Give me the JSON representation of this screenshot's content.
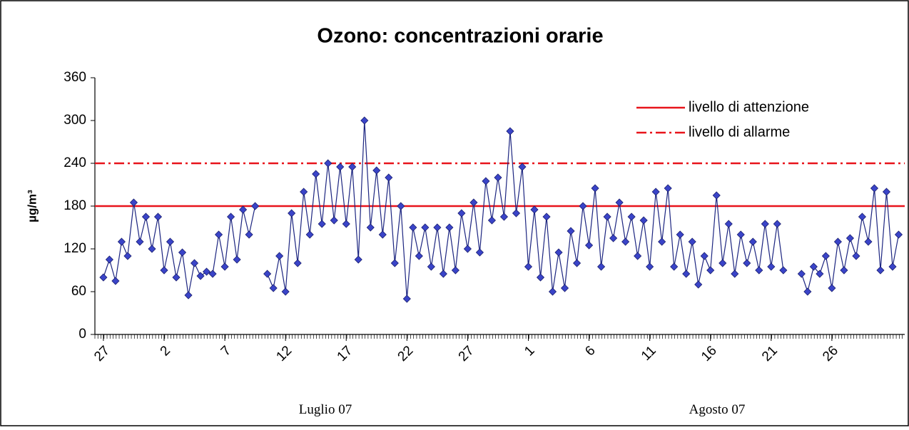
{
  "chart_data": {
    "type": "line",
    "title": "Ozono: concentrazioni orarie",
    "y_label": "µg/m³",
    "x_group_labels": [
      "Luglio 07",
      "Agosto 07"
    ],
    "xlim": [
      -0.7,
      66
    ],
    "xticks": [
      {
        "value": 0,
        "label": "27"
      },
      {
        "value": 5,
        "label": "2"
      },
      {
        "value": 10,
        "label": "7"
      },
      {
        "value": 15,
        "label": "12"
      },
      {
        "value": 20,
        "label": "17"
      },
      {
        "value": 25,
        "label": "22"
      },
      {
        "value": 30,
        "label": "27"
      },
      {
        "value": 35,
        "label": "1"
      },
      {
        "value": 40,
        "label": "6"
      },
      {
        "value": 45,
        "label": "11"
      },
      {
        "value": 50,
        "label": "16"
      },
      {
        "value": 55,
        "label": "21"
      },
      {
        "value": 60,
        "label": "26"
      }
    ],
    "ylim": [
      0,
      360
    ],
    "yticks": [
      0,
      60,
      120,
      180,
      240,
      300,
      360
    ],
    "reference_lines": [
      {
        "name": "livello di attenzione",
        "value": 180,
        "color": "#e8141b",
        "style": "solid"
      },
      {
        "name": "livello di allarme",
        "value": 240,
        "color": "#e8141b",
        "style": "dashdot"
      }
    ],
    "series": [
      {
        "name": "Ozono",
        "color": "#3a44c8",
        "x": [
          0,
          0.5,
          1,
          1.5,
          2,
          2.5,
          3,
          3.5,
          4,
          4.5,
          5,
          5.5,
          6,
          6.5,
          7,
          7.5,
          8,
          8.5,
          9,
          9.5,
          10,
          10.5,
          11,
          11.5,
          12,
          12.5,
          13,
          13.5,
          14,
          14.5,
          15,
          15.5,
          16,
          16.5,
          17,
          17.5,
          18,
          18.5,
          19,
          19.5,
          20,
          20.5,
          21,
          21.5,
          22,
          22.5,
          23,
          23.5,
          24,
          24.5,
          25,
          25.5,
          26,
          26.5,
          27,
          27.5,
          28,
          28.5,
          29,
          29.5,
          30,
          30.5,
          31,
          31.5,
          32,
          32.5,
          33,
          33.5,
          34,
          34.5,
          35,
          35.5,
          36,
          36.5,
          37,
          37.5,
          38,
          38.5,
          39,
          39.5,
          40,
          40.5,
          41,
          41.5,
          42,
          42.5,
          43,
          43.5,
          44,
          44.5,
          45,
          45.5,
          46,
          46.5,
          47,
          47.5,
          48,
          48.5,
          49,
          49.5,
          50,
          50.5,
          51,
          51.5,
          52,
          52.5,
          53,
          53.5,
          54,
          54.5,
          55,
          55.5,
          56,
          56.5,
          57,
          57.5,
          58,
          58.5,
          59,
          59.5,
          60,
          60.5,
          61,
          61.5,
          62,
          62.5,
          63,
          63.5,
          64,
          64.5,
          65,
          65.5
        ],
        "values": [
          80,
          105,
          75,
          130,
          110,
          185,
          130,
          165,
          120,
          165,
          90,
          130,
          80,
          115,
          55,
          100,
          82,
          88,
          85,
          140,
          95,
          165,
          105,
          175,
          140,
          180,
          null,
          85,
          65,
          110,
          60,
          170,
          100,
          200,
          140,
          225,
          155,
          240,
          160,
          235,
          155,
          235,
          105,
          300,
          150,
          230,
          140,
          220,
          100,
          180,
          50,
          150,
          110,
          150,
          95,
          150,
          85,
          150,
          90,
          170,
          120,
          185,
          115,
          215,
          160,
          220,
          165,
          285,
          170,
          235,
          95,
          175,
          80,
          165,
          60,
          115,
          65,
          145,
          100,
          180,
          125,
          205,
          95,
          165,
          135,
          185,
          130,
          165,
          110,
          160,
          95,
          200,
          130,
          205,
          95,
          140,
          85,
          130,
          70,
          110,
          90,
          195,
          100,
          155,
          85,
          140,
          100,
          130,
          90,
          155,
          95,
          155,
          90,
          null,
          null,
          85,
          60,
          95,
          85,
          110,
          65,
          130,
          90,
          135,
          110,
          165,
          130,
          205,
          90,
          200,
          95,
          140
        ]
      }
    ]
  }
}
